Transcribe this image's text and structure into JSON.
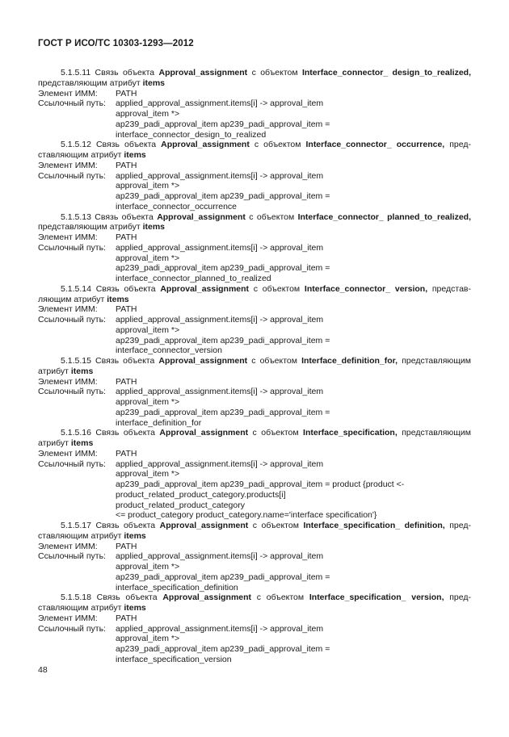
{
  "document": {
    "header": "ГОСТ Р ИСО/ТС 10303-1293—2012",
    "page_number": "48",
    "field_labels": {
      "element": "Элемент ИММ:",
      "path": "Ссылочный путь:"
    }
  },
  "sections": [
    {
      "number": "5.1.5.11",
      "heading_lines": [
        [
          {
            "b": 0,
            "t": "5.1.5.11 Связь объекта "
          },
          {
            "b": 1,
            "t": "Approval_assignment"
          },
          {
            "b": 0,
            "t": " с объектом "
          },
          {
            "b": 1,
            "t": "Interface_connector_ design_to_realized,"
          }
        ],
        [
          {
            "b": 0,
            "t": "представляющим атрибут "
          },
          {
            "b": 1,
            "t": "items"
          }
        ]
      ],
      "element_value": "PATH",
      "path_lines": [
        "applied_approval_assignment.items[i] -> approval_item",
        "approval_item *>",
        "ap239_padi_approval_item ap239_padi_approval_item =",
        "interface_connector_design_to_realized"
      ]
    },
    {
      "number": "5.1.5.12",
      "heading_lines": [
        [
          {
            "b": 0,
            "t": "5.1.5.12 Связь объекта "
          },
          {
            "b": 1,
            "t": "Approval_assignment"
          },
          {
            "b": 0,
            "t": " с объектом "
          },
          {
            "b": 1,
            "t": "Interface_connector_ occurrence,"
          },
          {
            "b": 0,
            "t": " пред-"
          }
        ],
        [
          {
            "b": 0,
            "t": "ставляющим атрибут "
          },
          {
            "b": 1,
            "t": "items"
          }
        ]
      ],
      "element_value": "PATH",
      "path_lines": [
        "applied_approval_assignment.items[i] -> approval_item",
        "approval_item *>",
        "ap239_padi_approval_item ap239_padi_approval_item =",
        "interface_connector_occurrence"
      ]
    },
    {
      "number": "5.1.5.13",
      "heading_lines": [
        [
          {
            "b": 0,
            "t": "5.1.5.13 Связь объекта "
          },
          {
            "b": 1,
            "t": "Approval_assignment"
          },
          {
            "b": 0,
            "t": " с объектом "
          },
          {
            "b": 1,
            "t": "Interface_connector_ planned_to_realized,"
          }
        ],
        [
          {
            "b": 0,
            "t": "представляющим атрибут "
          },
          {
            "b": 1,
            "t": "items"
          }
        ]
      ],
      "element_value": "PATH",
      "path_lines": [
        "applied_approval_assignment.items[i] -> approval_item",
        "approval_item *>",
        "ap239_padi_approval_item ap239_padi_approval_item =",
        "interface_connector_planned_to_realized"
      ]
    },
    {
      "number": "5.1.5.14",
      "heading_lines": [
        [
          {
            "b": 0,
            "t": "5.1.5.14 Связь объекта "
          },
          {
            "b": 1,
            "t": "Approval_assignment"
          },
          {
            "b": 0,
            "t": " с объектом "
          },
          {
            "b": 1,
            "t": "Interface_connector_ version,"
          },
          {
            "b": 0,
            "t": " представ-"
          }
        ],
        [
          {
            "b": 0,
            "t": "ляющим атрибут "
          },
          {
            "b": 1,
            "t": "items"
          }
        ]
      ],
      "element_value": "PATH",
      "path_lines": [
        "applied_approval_assignment.items[i] -> approval_item",
        "approval_item *>",
        "ap239_padi_approval_item ap239_padi_approval_item =",
        "interface_connector_version"
      ]
    },
    {
      "number": "5.1.5.15",
      "heading_lines": [
        [
          {
            "b": 0,
            "t": "5.1.5.15 Связь объекта "
          },
          {
            "b": 1,
            "t": "Approval_assignment"
          },
          {
            "b": 0,
            "t": " с объектом "
          },
          {
            "b": 1,
            "t": "Interface_definition_for,"
          },
          {
            "b": 0,
            "t": " представляющим"
          }
        ],
        [
          {
            "b": 0,
            "t": "атрибут "
          },
          {
            "b": 1,
            "t": "items"
          }
        ]
      ],
      "element_value": "PATH",
      "path_lines": [
        "applied_approval_assignment.items[i] -> approval_item",
        "approval_item *>",
        "ap239_padi_approval_item ap239_padi_approval_item =",
        "interface_definition_for"
      ]
    },
    {
      "number": "5.1.5.16",
      "heading_lines": [
        [
          {
            "b": 0,
            "t": "5.1.5.16 Связь объекта "
          },
          {
            "b": 1,
            "t": "Approval_assignment"
          },
          {
            "b": 0,
            "t": " с объектом "
          },
          {
            "b": 1,
            "t": "Interface_specification,"
          },
          {
            "b": 0,
            "t": " представляющим"
          }
        ],
        [
          {
            "b": 0,
            "t": "атрибут "
          },
          {
            "b": 1,
            "t": "items"
          }
        ]
      ],
      "element_value": "PATH",
      "path_lines": [
        "applied_approval_assignment.items[i] -> approval_item",
        "approval_item *>",
        "ap239_padi_approval_item ap239_padi_approval_item = product {product <-",
        "product_related_product_category.products[i]",
        "product_related_product_category",
        "<= product_category product_category.name='interface specification'}"
      ]
    },
    {
      "number": "5.1.5.17",
      "heading_lines": [
        [
          {
            "b": 0,
            "t": "5.1.5.17 Связь объекта "
          },
          {
            "b": 1,
            "t": "Approval_assignment"
          },
          {
            "b": 0,
            "t": " с объектом "
          },
          {
            "b": 1,
            "t": "Interface_specification_ definition,"
          },
          {
            "b": 0,
            "t": " пред-"
          }
        ],
        [
          {
            "b": 0,
            "t": "ставляющим атрибут "
          },
          {
            "b": 1,
            "t": "items"
          }
        ]
      ],
      "element_value": "PATH",
      "path_lines": [
        "applied_approval_assignment.items[i] -> approval_item",
        "approval_item *>",
        "ap239_padi_approval_item ap239_padi_approval_item =",
        "interface_specification_definition"
      ]
    },
    {
      "number": "5.1.5.18",
      "heading_lines": [
        [
          {
            "b": 0,
            "t": "5.1.5.18 Связь объекта "
          },
          {
            "b": 1,
            "t": "Approval_assignment"
          },
          {
            "b": 0,
            "t": " с объектом "
          },
          {
            "b": 1,
            "t": "Interface_specification_ version,"
          },
          {
            "b": 0,
            "t": " пред-"
          }
        ],
        [
          {
            "b": 0,
            "t": "ставляющим атрибут "
          },
          {
            "b": 1,
            "t": "items"
          }
        ]
      ],
      "element_value": "PATH",
      "path_lines": [
        "applied_approval_assignment.items[i] -> approval_item",
        "approval_item *>",
        "ap239_padi_approval_item ap239_padi_approval_item =",
        "interface_specification_version"
      ]
    }
  ]
}
